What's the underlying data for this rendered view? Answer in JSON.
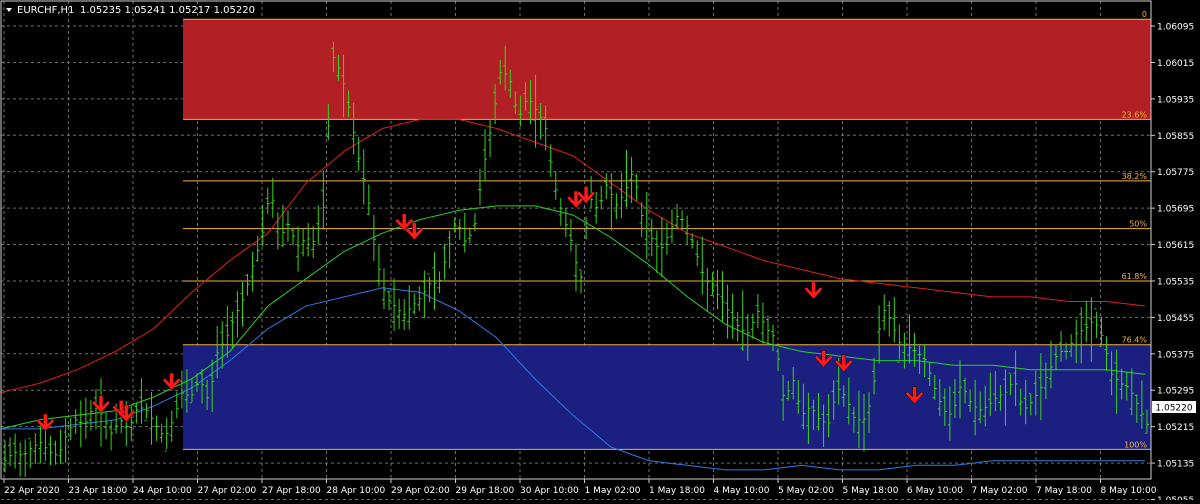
{
  "header": {
    "symbol": "EURCHF,H1",
    "ohlc": "1.05235 1.05241 1.05217 1.05220"
  },
  "colors": {
    "background": "#000000",
    "grid": "#6e6e6e",
    "candles": "#39d41b",
    "upper_zone": "#b21f24",
    "lower_zone": "#1b1f80",
    "fib_line": "#f0b43c",
    "fib_text": "#f0b43c",
    "ma_fast": "#2ad12a",
    "ma_slow": "#e0201c",
    "ma_lower": "#2c7ae8",
    "arrow": "#ff1a1a",
    "axis_text": "#ffffff"
  },
  "chart_data": {
    "type": "line",
    "title": "EURCHF,H1",
    "ohlc_current": [
      1.05235,
      1.05241,
      1.05217,
      1.0522
    ],
    "current_price": "1.05220",
    "ylim": [
      1.051,
      1.0615
    ],
    "y_ticks": [
      "1.06095",
      "1.06015",
      "1.05935",
      "1.05855",
      "1.05775",
      "1.05695",
      "1.05615",
      "1.05535",
      "1.05455",
      "1.05375",
      "1.05295",
      "1.05215",
      "1.05135",
      "1.05055"
    ],
    "x_ticks": [
      "22 Apr 2020",
      "23 Apr 18:00",
      "24 Apr 10:00",
      "27 Apr 02:00",
      "27 Apr 18:00",
      "28 Apr 10:00",
      "29 Apr 02:00",
      "29 Apr 18:00",
      "30 Apr 10:00",
      "1 May 02:00",
      "1 May 18:00",
      "4 May 10:00",
      "5 May 02:00",
      "5 May 18:00",
      "6 May 10:00",
      "7 May 02:00",
      "7 May 18:00",
      "8 May 10:00"
    ],
    "fib_levels": [
      {
        "label": "0",
        "price": 1.0611
      },
      {
        "label": "23.6%",
        "price": 1.0589
      },
      {
        "label": "38.2%",
        "price": 1.05755
      },
      {
        "label": "50%",
        "price": 1.0565
      },
      {
        "label": "61.8%",
        "price": 1.05535
      },
      {
        "label": "76.4%",
        "price": 1.05395
      },
      {
        "label": "100%",
        "price": 1.05165
      }
    ],
    "zones": [
      {
        "name": "upper",
        "from": 1.0589,
        "to": 1.0611
      },
      {
        "name": "lower",
        "from": 1.05165,
        "to": 1.05395
      }
    ],
    "series": [
      {
        "name": "price",
        "values": [
          1.0514,
          1.0516,
          1.0515,
          1.0517,
          1.0518,
          1.0516,
          1.0515,
          1.052,
          1.0523,
          1.0522,
          1.0526,
          1.0524,
          1.052,
          1.0523,
          1.0521,
          1.0526,
          1.0525,
          1.0522,
          1.0519,
          1.0523,
          1.0529,
          1.0528,
          1.0532,
          1.0527,
          1.0538,
          1.0541,
          1.0546,
          1.055,
          1.0557,
          1.0563,
          1.0574,
          1.0563,
          1.0566,
          1.0561,
          1.0563,
          1.0562,
          1.057,
          1.0603,
          1.0599,
          1.059,
          1.058,
          1.0572,
          1.0558,
          1.055,
          1.0548,
          1.0546,
          1.0548,
          1.055,
          1.0553,
          1.0553,
          1.056,
          1.0567,
          1.0562,
          1.0565,
          1.0578,
          1.0588,
          1.06,
          1.0598,
          1.0589,
          1.0594,
          1.0591,
          1.0588,
          1.0575,
          1.0568,
          1.0562,
          1.0553,
          1.0572,
          1.0569,
          1.0575,
          1.057,
          1.0573,
          1.0578,
          1.0567,
          1.0563,
          1.056,
          1.0564,
          1.0568,
          1.0566,
          1.056,
          1.0554,
          1.0552,
          1.0549,
          1.0546,
          1.0543,
          1.0542,
          1.0547,
          1.0543,
          1.0541,
          1.0527,
          1.0532,
          1.0524,
          1.0526,
          1.0523,
          1.0522,
          1.053,
          1.0528,
          1.0523,
          1.0523,
          1.0528,
          1.0548,
          1.0545,
          1.054,
          1.0539,
          1.0538,
          1.0536,
          1.053,
          1.0525,
          1.0524,
          1.0531,
          1.0527,
          1.0525,
          1.0526,
          1.0528,
          1.0529,
          1.0532,
          1.0525,
          1.0527,
          1.053,
          1.0534,
          1.0538,
          1.0538,
          1.0542,
          1.0543,
          1.0545,
          1.0541,
          1.0533,
          1.0531,
          1.053,
          1.0526,
          1.0522
        ]
      },
      {
        "name": "ma_fast",
        "values": [
          1.0521,
          1.0523,
          1.0524,
          1.0525,
          1.0528,
          1.0532,
          1.0538,
          1.0548,
          1.0554,
          1.056,
          1.0564,
          1.0567,
          1.0569,
          1.057,
          1.057,
          1.0568,
          1.0563,
          1.0557,
          1.055,
          1.0544,
          1.054,
          1.0538,
          1.0537,
          1.0536,
          1.0536,
          1.0535,
          1.0535,
          1.0534,
          1.0534,
          1.0534,
          1.0533
        ]
      },
      {
        "name": "ma_slow",
        "values": [
          1.0529,
          1.0531,
          1.0534,
          1.0538,
          1.0543,
          1.0551,
          1.0558,
          1.0564,
          1.0575,
          1.0582,
          1.0587,
          1.0589,
          1.0589,
          1.0587,
          1.0584,
          1.0581,
          1.0575,
          1.0569,
          1.0564,
          1.0561,
          1.0558,
          1.0556,
          1.0554,
          1.0553,
          1.0552,
          1.0551,
          1.055,
          1.055,
          1.0549,
          1.0549,
          1.0548
        ]
      },
      {
        "name": "ma_lower",
        "values": [
          1.0521,
          1.0521,
          1.0522,
          1.0523,
          1.0526,
          1.053,
          1.0536,
          1.0543,
          1.0548,
          1.055,
          1.0552,
          1.0551,
          1.0547,
          1.0541,
          1.0532,
          1.0524,
          1.0517,
          1.0514,
          1.0513,
          1.0512,
          1.0512,
          1.0513,
          1.0512,
          1.0512,
          1.0513,
          1.0513,
          1.0514,
          1.0514,
          1.0514,
          1.0514,
          1.0514
        ]
      }
    ],
    "sell_signals": [
      {
        "x_index": 8,
        "price": 1.0519
      },
      {
        "x_index": 19,
        "price": 1.0523
      },
      {
        "x_index": 23,
        "price": 1.0522
      },
      {
        "x_index": 24,
        "price": 1.0521
      },
      {
        "x_index": 33,
        "price": 1.0528
      },
      {
        "x_index": 79,
        "price": 1.0563
      },
      {
        "x_index": 81,
        "price": 1.0561
      },
      {
        "x_index": 113,
        "price": 1.0568
      },
      {
        "x_index": 115,
        "price": 1.0569
      },
      {
        "x_index": 160,
        "price": 1.0548
      },
      {
        "x_index": 162,
        "price": 1.0533
      },
      {
        "x_index": 166,
        "price": 1.0532
      },
      {
        "x_index": 180,
        "price": 1.0525
      }
    ],
    "grid": true
  }
}
